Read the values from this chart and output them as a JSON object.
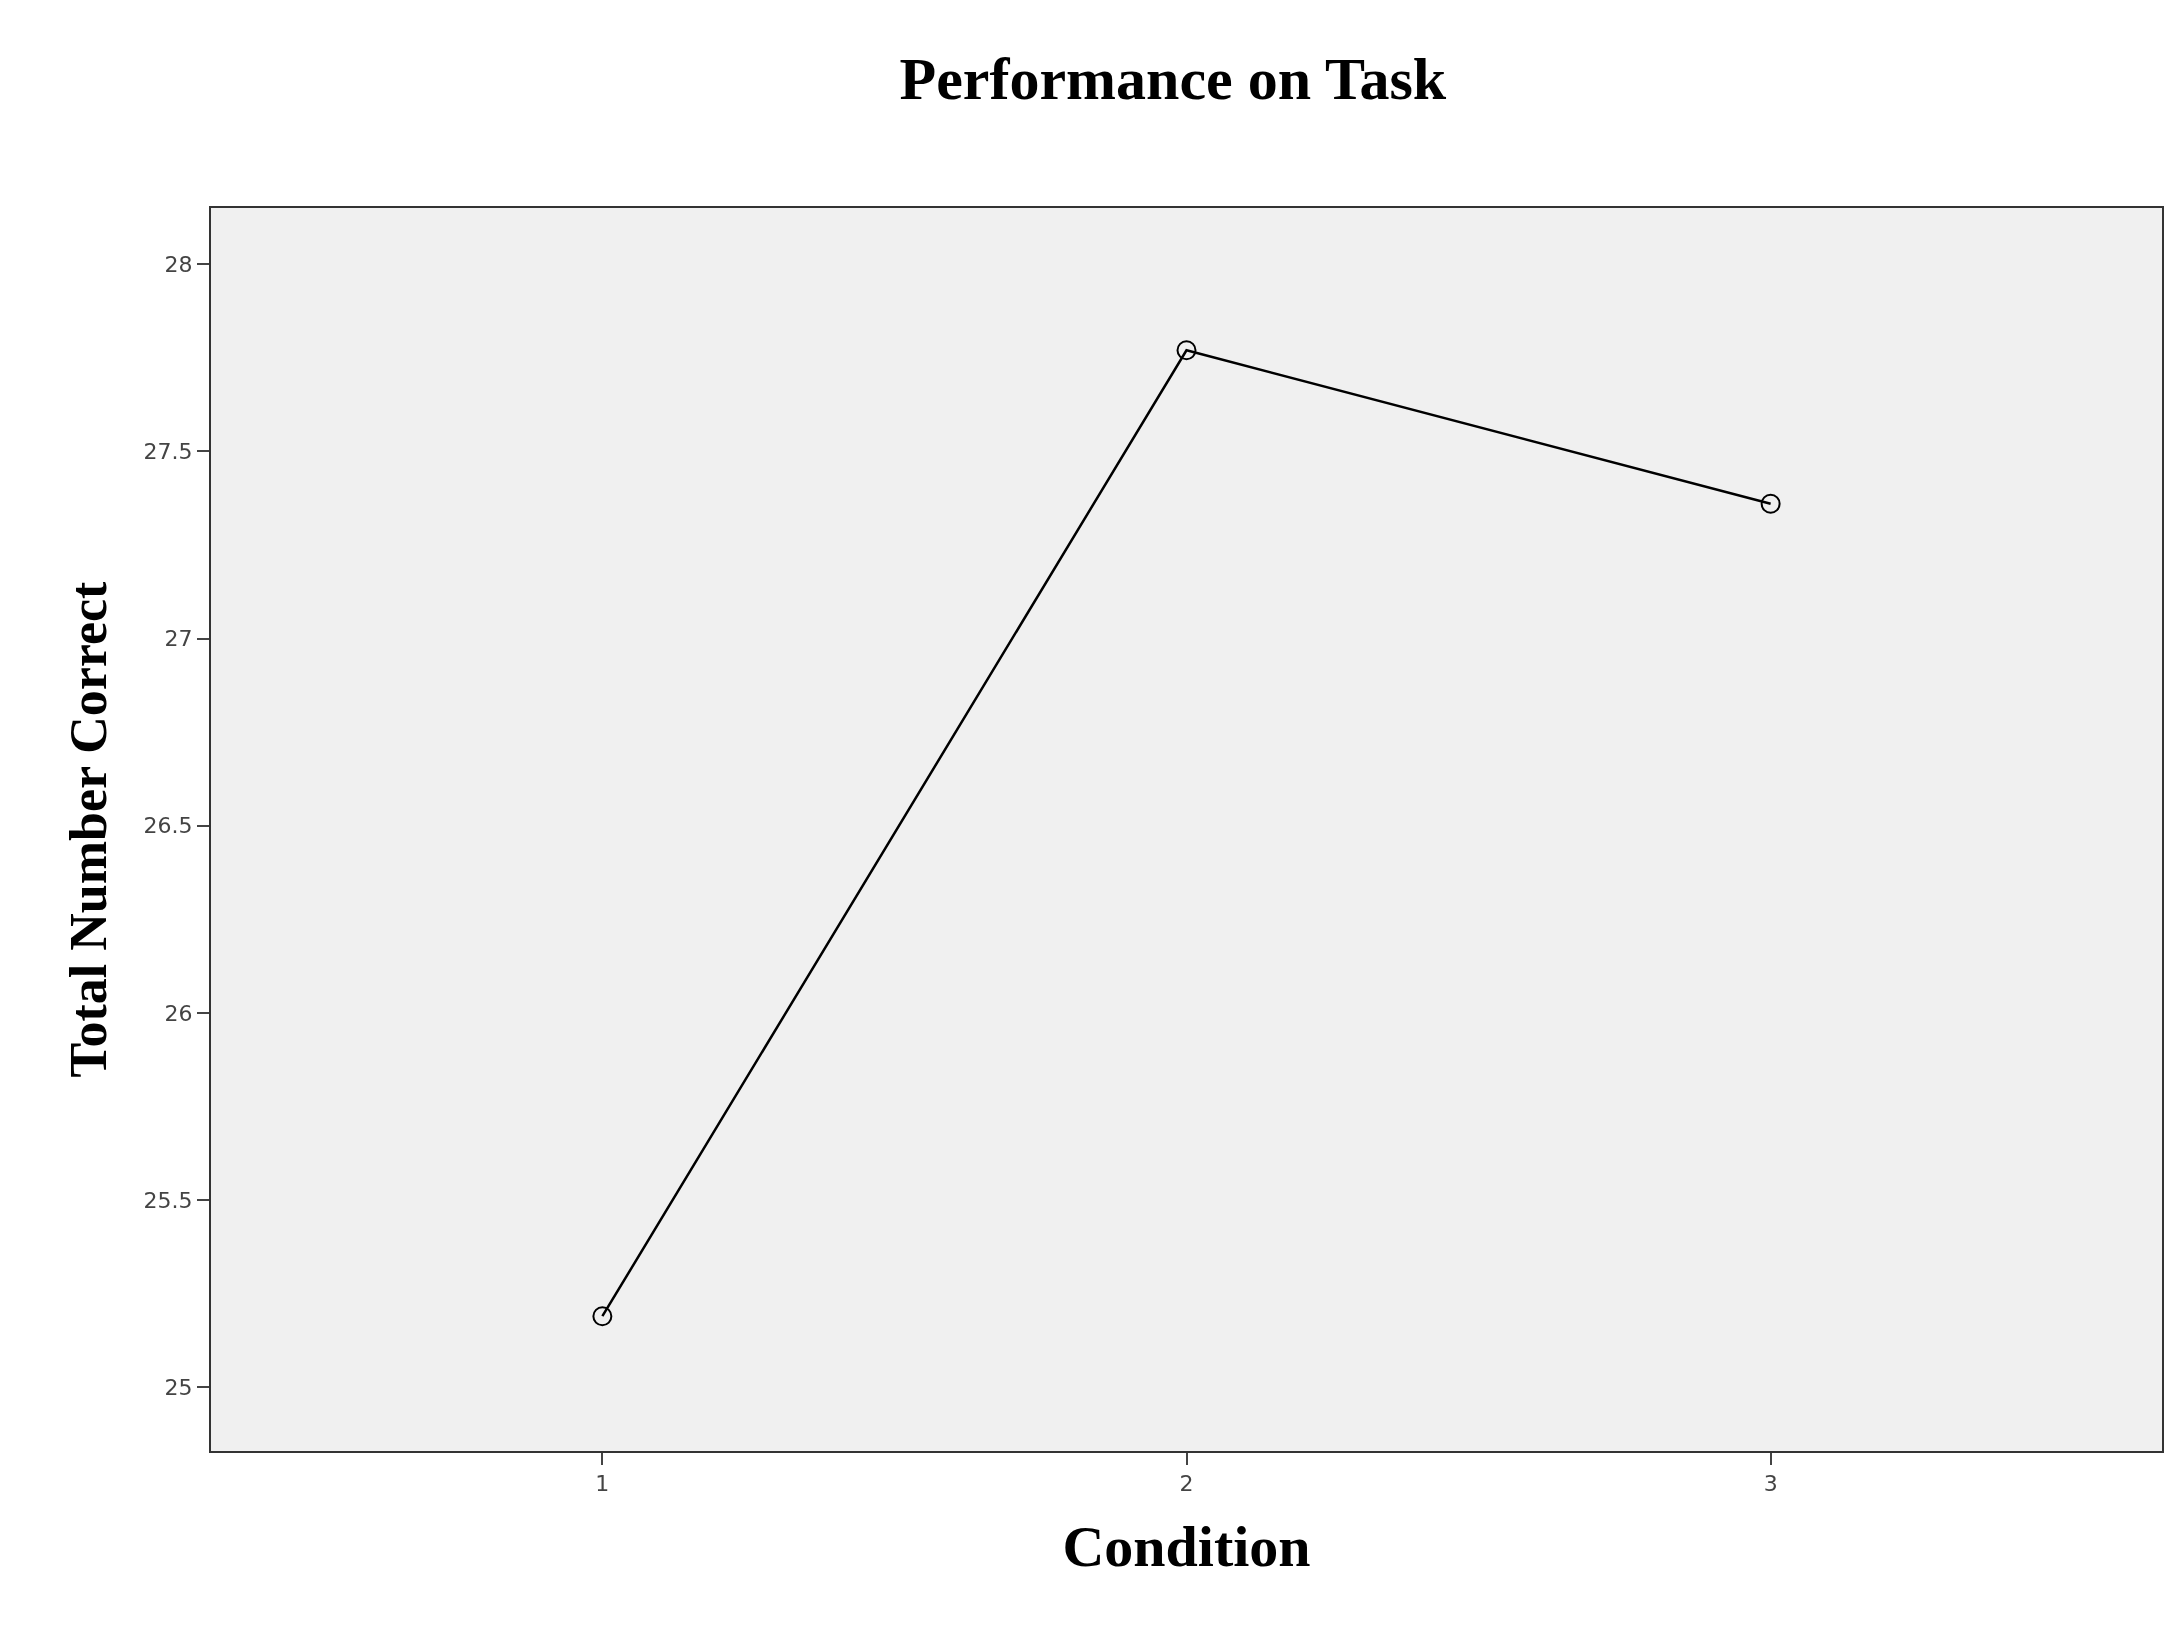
{
  "chart_data": {
    "type": "line",
    "title": "Performance on Task",
    "xlabel": "Condition",
    "ylabel": "Total Number Correct",
    "x": [
      1,
      2,
      3
    ],
    "series": [
      {
        "color": "#000000",
        "values": [
          25.19,
          27.77,
          27.36
        ]
      }
    ],
    "xlim": [
      0.33,
      3.67
    ],
    "xticks": [
      1,
      2,
      3
    ],
    "ylim": [
      24.83,
      28.15
    ],
    "yticks": [
      25,
      25.5,
      26,
      26.5,
      27,
      27.5,
      28
    ],
    "marker": "circle",
    "line_style": "solid",
    "grid": false
  }
}
